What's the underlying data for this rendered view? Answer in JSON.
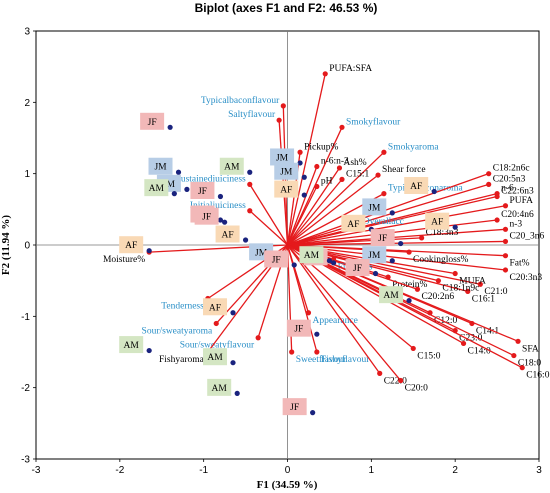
{
  "colors": {
    "vector": "#e41a1c",
    "observation": "#1a237e",
    "text_blue": "#2a8fc7",
    "JF": "#f2b8b8",
    "JM": "#b7cde6",
    "AM": "#d4e6c3",
    "AF": "#f9d9b5"
  },
  "chart_data": {
    "type": "scatter",
    "title": "Biplot (axes F1 and F2: 46.53 %)",
    "xlabel": "F1 (34.59 %)",
    "ylabel": "F2 (11.94 %)",
    "xlim": [
      -3,
      3
    ],
    "ylim": [
      -3,
      3
    ],
    "xticks": [
      "-3",
      "-2",
      "-1",
      "0",
      "1",
      "2",
      "3"
    ],
    "yticks": [
      "-3",
      "-2",
      "-1",
      "0",
      "1",
      "2",
      "3"
    ],
    "grid": false,
    "variables": [
      {
        "name": "PUFA:SFA",
        "x": 0.45,
        "y": 2.4,
        "color": "black"
      },
      {
        "name": "Typicalbaconflavour",
        "x": -0.05,
        "y": 1.95,
        "color": "blue"
      },
      {
        "name": "Saltyflavour",
        "x": -0.1,
        "y": 1.75,
        "color": "blue"
      },
      {
        "name": "Smokyflavour",
        "x": 0.65,
        "y": 1.65,
        "color": "blue"
      },
      {
        "name": "Pickup%",
        "x": 0.15,
        "y": 1.3,
        "color": "black"
      },
      {
        "name": "n-6:n-3",
        "x": 0.35,
        "y": 1.1,
        "color": "black"
      },
      {
        "name": "Ash%",
        "x": 0.62,
        "y": 1.08,
        "color": "black"
      },
      {
        "name": "Smokyaroma",
        "x": 1.15,
        "y": 1.3,
        "color": "blue"
      },
      {
        "name": "Shear force",
        "x": 1.08,
        "y": 0.98,
        "color": "black"
      },
      {
        "name": "C15:1",
        "x": 0.65,
        "y": 0.92,
        "color": "black"
      },
      {
        "name": "pH",
        "x": 0.35,
        "y": 0.82,
        "color": "black"
      },
      {
        "name": "Typicalbaconaroma",
        "x": 1.15,
        "y": 0.72,
        "color": "blue"
      },
      {
        "name": "Sustainedjuiciness",
        "x": -0.45,
        "y": 0.85,
        "color": "blue"
      },
      {
        "name": "Initialjuiciness",
        "x": -0.45,
        "y": 0.48,
        "color": "blue"
      },
      {
        "name": "Moisture%",
        "x": -1.65,
        "y": -0.1,
        "color": "black"
      },
      {
        "name": "C18:2n6c",
        "x": 2.4,
        "y": 1.0,
        "color": "black"
      },
      {
        "name": "C20:5n3",
        "x": 2.4,
        "y": 0.85,
        "color": "black"
      },
      {
        "name": "n-6",
        "x": 2.5,
        "y": 0.72,
        "color": "black"
      },
      {
        "name": "C22:6n3",
        "x": 2.5,
        "y": 0.68,
        "color": "black"
      },
      {
        "name": "PUFA",
        "x": 2.6,
        "y": 0.55,
        "color": "black"
      },
      {
        "name": "C20:4n6",
        "x": 2.5,
        "y": 0.35,
        "color": "black"
      },
      {
        "name": "n-3",
        "x": 2.6,
        "y": 0.22,
        "color": "black"
      },
      {
        "name": "C20_3n6",
        "x": 2.6,
        "y": 0.05,
        "color": "black"
      },
      {
        "name": "Fat%",
        "x": 2.6,
        "y": -0.15,
        "color": "black"
      },
      {
        "name": "C20:3n3",
        "x": 2.6,
        "y": -0.35,
        "color": "black"
      },
      {
        "name": "C21:0",
        "x": 2.3,
        "y": -0.55,
        "color": "black"
      },
      {
        "name": "C16:1",
        "x": 2.15,
        "y": -0.65,
        "color": "black"
      },
      {
        "name": "C18:3n3",
        "x": 1.6,
        "y": 0.1,
        "color": "black"
      },
      {
        "name": "Cookingloss%",
        "x": 1.45,
        "y": -0.1,
        "color": "black"
      },
      {
        "name": "MUFA",
        "x": 2.0,
        "y": -0.4,
        "color": "black"
      },
      {
        "name": "C18:1n9c",
        "x": 1.8,
        "y": -0.5,
        "color": "black"
      },
      {
        "name": "Protein%",
        "x": 1.2,
        "y": -0.45,
        "color": "black"
      },
      {
        "name": "C20:2n6",
        "x": 1.55,
        "y": -0.62,
        "color": "black"
      },
      {
        "name": "Overallacc",
        "x": 0.85,
        "y": 0.25,
        "color": "blue"
      },
      {
        "name": "Firmness",
        "x": 0.55,
        "y": -0.2,
        "color": "blue"
      },
      {
        "name": "C12:0",
        "x": 1.7,
        "y": -0.95,
        "color": "black"
      },
      {
        "name": "C14:1",
        "x": 2.2,
        "y": -1.1,
        "color": "black"
      },
      {
        "name": "C23:0",
        "x": 2.0,
        "y": -1.2,
        "color": "black"
      },
      {
        "name": "C14:0",
        "x": 2.1,
        "y": -1.38,
        "color": "black"
      },
      {
        "name": "C15:0",
        "x": 1.5,
        "y": -1.45,
        "color": "black"
      },
      {
        "name": "SFA",
        "x": 2.75,
        "y": -1.35,
        "color": "black"
      },
      {
        "name": "C18:0",
        "x": 2.7,
        "y": -1.55,
        "color": "black"
      },
      {
        "name": "C16:0",
        "x": 2.8,
        "y": -1.72,
        "color": "black"
      },
      {
        "name": "Appearance",
        "x": 0.25,
        "y": -0.95,
        "color": "blue"
      },
      {
        "name": "Tenderness",
        "x": -0.95,
        "y": -0.75,
        "color": "blue"
      },
      {
        "name": "Sour/sweatyaroma",
        "x": -0.85,
        "y": -1.1,
        "color": "blue"
      },
      {
        "name": "Sour/sweatyflavour",
        "x": -0.35,
        "y": -1.3,
        "color": "blue"
      },
      {
        "name": "Sweetflavour",
        "x": 0.05,
        "y": -1.5,
        "color": "blue"
      },
      {
        "name": "Fishyflavour",
        "x": 0.35,
        "y": -1.5,
        "color": "blue"
      },
      {
        "name": "Fishyaroma",
        "x": -0.95,
        "y": -1.5,
        "color": "black"
      },
      {
        "name": "C22:0",
        "x": 1.1,
        "y": -1.8,
        "color": "black"
      },
      {
        "name": "C20:0",
        "x": 1.35,
        "y": -1.9,
        "color": "black"
      }
    ],
    "observations": [
      {
        "group": "JF",
        "x": -1.4,
        "y": 1.65
      },
      {
        "group": "JM",
        "x": -1.3,
        "y": 1.02
      },
      {
        "group": "JM",
        "x": -1.2,
        "y": 0.78
      },
      {
        "group": "JF",
        "x": -0.8,
        "y": 0.68
      },
      {
        "group": "AM",
        "x": -0.45,
        "y": 1.02
      },
      {
        "group": "AM",
        "x": -1.35,
        "y": 0.72
      },
      {
        "group": "JF",
        "x": -0.8,
        "y": 0.35
      },
      {
        "group": "JF",
        "x": -0.75,
        "y": 0.32
      },
      {
        "group": "AF",
        "x": -1.65,
        "y": -0.08
      },
      {
        "group": "AF",
        "x": -0.5,
        "y": 0.07
      },
      {
        "group": "JM",
        "x": -0.1,
        "y": -0.18
      },
      {
        "group": "JF",
        "x": 0.08,
        "y": -0.28
      },
      {
        "group": "JM",
        "x": 0.15,
        "y": 1.15
      },
      {
        "group": "JM",
        "x": 0.2,
        "y": 0.95
      },
      {
        "group": "AF",
        "x": 0.2,
        "y": 0.7
      },
      {
        "group": "AF",
        "x": -0.65,
        "y": -0.95
      },
      {
        "group": "JF",
        "x": 0.55,
        "y": -0.25
      },
      {
        "group": "AM",
        "x": 0.5,
        "y": -0.22
      },
      {
        "group": "JF",
        "x": 0.35,
        "y": -1.25
      },
      {
        "group": "AM",
        "x": -1.65,
        "y": -1.48
      },
      {
        "group": "AM",
        "x": -0.65,
        "y": -1.65
      },
      {
        "group": "AM",
        "x": -0.6,
        "y": -2.08
      },
      {
        "group": "JF",
        "x": 0.3,
        "y": -2.35
      },
      {
        "group": "JM",
        "x": 1.25,
        "y": 0.45
      },
      {
        "group": "AF",
        "x": 1.0,
        "y": 0.22
      },
      {
        "group": "AF",
        "x": 1.75,
        "y": 0.75
      },
      {
        "group": "AF",
        "x": 2.0,
        "y": 0.25
      },
      {
        "group": "JF",
        "x": 1.35,
        "y": 0.02
      },
      {
        "group": "JM",
        "x": 1.25,
        "y": -0.22
      },
      {
        "group": "JF",
        "x": 1.05,
        "y": -0.4
      },
      {
        "group": "AM",
        "x": 1.45,
        "y": -0.78
      }
    ]
  }
}
